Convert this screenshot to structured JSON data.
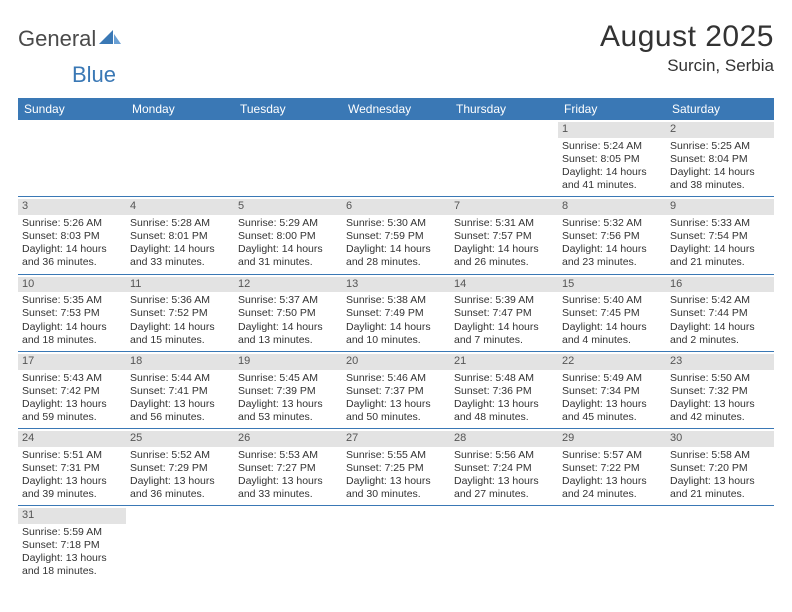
{
  "logo": {
    "general": "General",
    "blue": "Blue"
  },
  "title": "August 2025",
  "location": "Surcin, Serbia",
  "weekdays": [
    "Sunday",
    "Monday",
    "Tuesday",
    "Wednesday",
    "Thursday",
    "Friday",
    "Saturday"
  ],
  "colors": {
    "header_bg": "#3a78b5",
    "daybar_bg": "#e3e3e3",
    "rule": "#3a78b5",
    "text": "#333333",
    "logo_gray": "#4a4a4a",
    "logo_blue": "#3a78b5"
  },
  "weeks": [
    [
      null,
      null,
      null,
      null,
      null,
      {
        "n": "1",
        "sr": "Sunrise: 5:24 AM",
        "ss": "Sunset: 8:05 PM",
        "d1": "Daylight: 14 hours",
        "d2": "and 41 minutes."
      },
      {
        "n": "2",
        "sr": "Sunrise: 5:25 AM",
        "ss": "Sunset: 8:04 PM",
        "d1": "Daylight: 14 hours",
        "d2": "and 38 minutes."
      }
    ],
    [
      {
        "n": "3",
        "sr": "Sunrise: 5:26 AM",
        "ss": "Sunset: 8:03 PM",
        "d1": "Daylight: 14 hours",
        "d2": "and 36 minutes."
      },
      {
        "n": "4",
        "sr": "Sunrise: 5:28 AM",
        "ss": "Sunset: 8:01 PM",
        "d1": "Daylight: 14 hours",
        "d2": "and 33 minutes."
      },
      {
        "n": "5",
        "sr": "Sunrise: 5:29 AM",
        "ss": "Sunset: 8:00 PM",
        "d1": "Daylight: 14 hours",
        "d2": "and 31 minutes."
      },
      {
        "n": "6",
        "sr": "Sunrise: 5:30 AM",
        "ss": "Sunset: 7:59 PM",
        "d1": "Daylight: 14 hours",
        "d2": "and 28 minutes."
      },
      {
        "n": "7",
        "sr": "Sunrise: 5:31 AM",
        "ss": "Sunset: 7:57 PM",
        "d1": "Daylight: 14 hours",
        "d2": "and 26 minutes."
      },
      {
        "n": "8",
        "sr": "Sunrise: 5:32 AM",
        "ss": "Sunset: 7:56 PM",
        "d1": "Daylight: 14 hours",
        "d2": "and 23 minutes."
      },
      {
        "n": "9",
        "sr": "Sunrise: 5:33 AM",
        "ss": "Sunset: 7:54 PM",
        "d1": "Daylight: 14 hours",
        "d2": "and 21 minutes."
      }
    ],
    [
      {
        "n": "10",
        "sr": "Sunrise: 5:35 AM",
        "ss": "Sunset: 7:53 PM",
        "d1": "Daylight: 14 hours",
        "d2": "and 18 minutes."
      },
      {
        "n": "11",
        "sr": "Sunrise: 5:36 AM",
        "ss": "Sunset: 7:52 PM",
        "d1": "Daylight: 14 hours",
        "d2": "and 15 minutes."
      },
      {
        "n": "12",
        "sr": "Sunrise: 5:37 AM",
        "ss": "Sunset: 7:50 PM",
        "d1": "Daylight: 14 hours",
        "d2": "and 13 minutes."
      },
      {
        "n": "13",
        "sr": "Sunrise: 5:38 AM",
        "ss": "Sunset: 7:49 PM",
        "d1": "Daylight: 14 hours",
        "d2": "and 10 minutes."
      },
      {
        "n": "14",
        "sr": "Sunrise: 5:39 AM",
        "ss": "Sunset: 7:47 PM",
        "d1": "Daylight: 14 hours",
        "d2": "and 7 minutes."
      },
      {
        "n": "15",
        "sr": "Sunrise: 5:40 AM",
        "ss": "Sunset: 7:45 PM",
        "d1": "Daylight: 14 hours",
        "d2": "and 4 minutes."
      },
      {
        "n": "16",
        "sr": "Sunrise: 5:42 AM",
        "ss": "Sunset: 7:44 PM",
        "d1": "Daylight: 14 hours",
        "d2": "and 2 minutes."
      }
    ],
    [
      {
        "n": "17",
        "sr": "Sunrise: 5:43 AM",
        "ss": "Sunset: 7:42 PM",
        "d1": "Daylight: 13 hours",
        "d2": "and 59 minutes."
      },
      {
        "n": "18",
        "sr": "Sunrise: 5:44 AM",
        "ss": "Sunset: 7:41 PM",
        "d1": "Daylight: 13 hours",
        "d2": "and 56 minutes."
      },
      {
        "n": "19",
        "sr": "Sunrise: 5:45 AM",
        "ss": "Sunset: 7:39 PM",
        "d1": "Daylight: 13 hours",
        "d2": "and 53 minutes."
      },
      {
        "n": "20",
        "sr": "Sunrise: 5:46 AM",
        "ss": "Sunset: 7:37 PM",
        "d1": "Daylight: 13 hours",
        "d2": "and 50 minutes."
      },
      {
        "n": "21",
        "sr": "Sunrise: 5:48 AM",
        "ss": "Sunset: 7:36 PM",
        "d1": "Daylight: 13 hours",
        "d2": "and 48 minutes."
      },
      {
        "n": "22",
        "sr": "Sunrise: 5:49 AM",
        "ss": "Sunset: 7:34 PM",
        "d1": "Daylight: 13 hours",
        "d2": "and 45 minutes."
      },
      {
        "n": "23",
        "sr": "Sunrise: 5:50 AM",
        "ss": "Sunset: 7:32 PM",
        "d1": "Daylight: 13 hours",
        "d2": "and 42 minutes."
      }
    ],
    [
      {
        "n": "24",
        "sr": "Sunrise: 5:51 AM",
        "ss": "Sunset: 7:31 PM",
        "d1": "Daylight: 13 hours",
        "d2": "and 39 minutes."
      },
      {
        "n": "25",
        "sr": "Sunrise: 5:52 AM",
        "ss": "Sunset: 7:29 PM",
        "d1": "Daylight: 13 hours",
        "d2": "and 36 minutes."
      },
      {
        "n": "26",
        "sr": "Sunrise: 5:53 AM",
        "ss": "Sunset: 7:27 PM",
        "d1": "Daylight: 13 hours",
        "d2": "and 33 minutes."
      },
      {
        "n": "27",
        "sr": "Sunrise: 5:55 AM",
        "ss": "Sunset: 7:25 PM",
        "d1": "Daylight: 13 hours",
        "d2": "and 30 minutes."
      },
      {
        "n": "28",
        "sr": "Sunrise: 5:56 AM",
        "ss": "Sunset: 7:24 PM",
        "d1": "Daylight: 13 hours",
        "d2": "and 27 minutes."
      },
      {
        "n": "29",
        "sr": "Sunrise: 5:57 AM",
        "ss": "Sunset: 7:22 PM",
        "d1": "Daylight: 13 hours",
        "d2": "and 24 minutes."
      },
      {
        "n": "30",
        "sr": "Sunrise: 5:58 AM",
        "ss": "Sunset: 7:20 PM",
        "d1": "Daylight: 13 hours",
        "d2": "and 21 minutes."
      }
    ],
    [
      {
        "n": "31",
        "sr": "Sunrise: 5:59 AM",
        "ss": "Sunset: 7:18 PM",
        "d1": "Daylight: 13 hours",
        "d2": "and 18 minutes."
      },
      null,
      null,
      null,
      null,
      null,
      null
    ]
  ]
}
